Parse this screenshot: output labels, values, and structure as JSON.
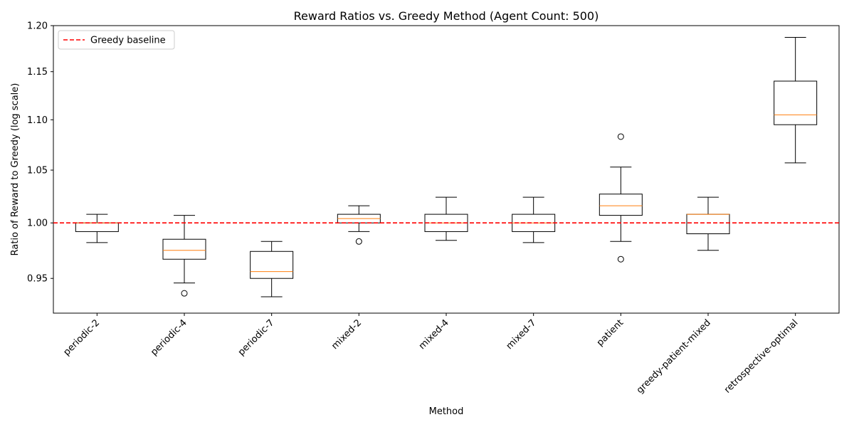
{
  "chart_data": {
    "type": "box",
    "title": "Reward Ratios vs. Greedy Method (Agent Count: 500)",
    "xlabel": "Method",
    "ylabel": "Ratio of Reward to Greedy (log scale)",
    "yscale": "log",
    "ylim": [
      0.92,
      1.2
    ],
    "yticks": [
      0.95,
      1.0,
      1.05,
      1.1,
      1.15,
      1.2
    ],
    "ytick_labels": [
      "0.95",
      "1.00",
      "1.05",
      "1.10",
      "1.15",
      "1.20"
    ],
    "grid": false,
    "legend_position": "top-left",
    "baseline": {
      "label": "Greedy baseline",
      "value": 1.0,
      "color": "#ff0000",
      "style": "dashed"
    },
    "box_color": "#000000",
    "median_color": "#ff7f0e",
    "categories": [
      "periodic-2",
      "periodic-4",
      "periodic-7",
      "mixed-2",
      "mixed-4",
      "mixed-7",
      "patient",
      "greedy-patient-mixed",
      "retrospective-optimal"
    ],
    "boxes": [
      {
        "whisker_low": 0.982,
        "q1": 0.992,
        "median": 1.0,
        "q3": 1.0,
        "whisker_high": 1.008,
        "outliers": []
      },
      {
        "whisker_low": 0.946,
        "q1": 0.967,
        "median": 0.975,
        "q3": 0.985,
        "whisker_high": 1.007,
        "outliers": [
          0.937
        ]
      },
      {
        "whisker_low": 0.934,
        "q1": 0.95,
        "median": 0.956,
        "q3": 0.974,
        "whisker_high": 0.983,
        "outliers": []
      },
      {
        "whisker_low": 0.992,
        "q1": 1.0,
        "median": 1.004,
        "q3": 1.008,
        "whisker_high": 1.016,
        "outliers": [
          0.983
        ]
      },
      {
        "whisker_low": 0.984,
        "q1": 0.992,
        "median": 1.0,
        "q3": 1.008,
        "whisker_high": 1.024,
        "outliers": []
      },
      {
        "whisker_low": 0.982,
        "q1": 0.992,
        "median": 1.0,
        "q3": 1.008,
        "whisker_high": 1.024,
        "outliers": []
      },
      {
        "whisker_low": 0.983,
        "q1": 1.007,
        "median": 1.016,
        "q3": 1.027,
        "whisker_high": 1.053,
        "outliers": [
          1.083,
          0.967
        ]
      },
      {
        "whisker_low": 0.975,
        "q1": 0.99,
        "median": 1.008,
        "q3": 1.008,
        "whisker_high": 1.024,
        "outliers": []
      },
      {
        "whisker_low": 1.057,
        "q1": 1.095,
        "median": 1.105,
        "q3": 1.14,
        "whisker_high": 1.187,
        "outliers": []
      }
    ]
  }
}
